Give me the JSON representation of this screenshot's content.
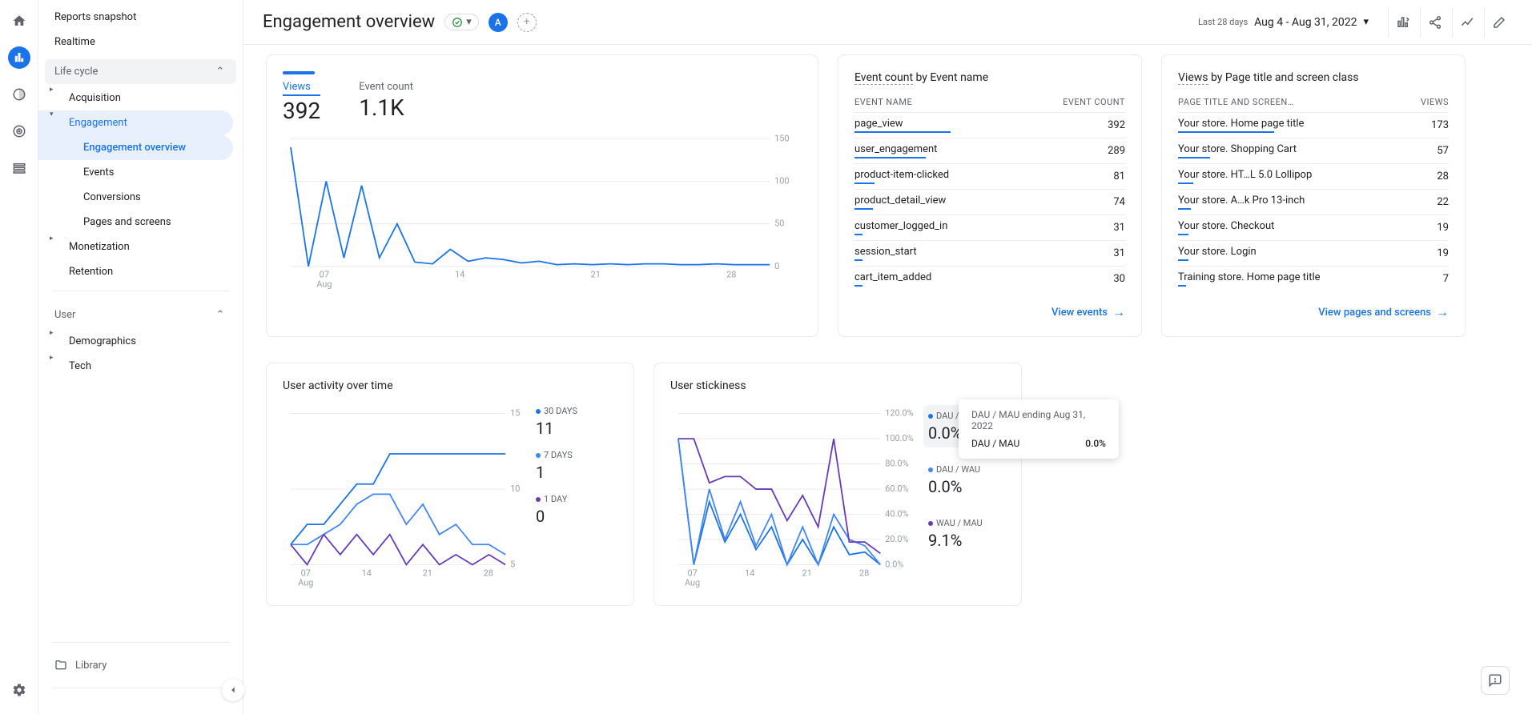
{
  "colors": {
    "primary": "#1a73e8",
    "purple": "#673ab7",
    "gray": "#9aa0a6",
    "grid": "#e8eaed",
    "text": "#202124",
    "text2": "#5f6368",
    "green": "#188038"
  },
  "rail": {
    "icons": [
      "home",
      "reports",
      "explore",
      "advertising",
      "library"
    ],
    "active_index": 1
  },
  "sidebar": {
    "reports_snapshot": "Reports snapshot",
    "realtime": "Realtime",
    "lifecycle": "Life cycle",
    "acquisition": "Acquisition",
    "engagement": "Engagement",
    "engagement_overview": "Engagement overview",
    "events": "Events",
    "conversions": "Conversions",
    "pages_and_screens": "Pages and screens",
    "monetization": "Monetization",
    "retention": "Retention",
    "user": "User",
    "demographics": "Demographics",
    "tech": "Tech",
    "library": "Library"
  },
  "header": {
    "title": "Engagement overview",
    "chip": "A",
    "period_label": "Last 28 days",
    "date_range": "Aug 4 - Aug 31, 2022"
  },
  "views_card": {
    "metric1_label": "Views",
    "metric1_value": "392",
    "metric2_label": "Event count",
    "metric2_value": "1.1K",
    "chart": {
      "type": "line",
      "color": "#1a73e8",
      "ylim": [
        0,
        150
      ],
      "yticks": [
        "0",
        "50",
        "100",
        "150"
      ],
      "xaxis_labels": [
        "07",
        "14",
        "21",
        "28"
      ],
      "xaxis_sub": "Aug",
      "data": [
        {
          "x": 0,
          "y": 140
        },
        {
          "x": 1,
          "y": 0
        },
        {
          "x": 2,
          "y": 100
        },
        {
          "x": 3,
          "y": 10
        },
        {
          "x": 4,
          "y": 95
        },
        {
          "x": 5,
          "y": 10
        },
        {
          "x": 6,
          "y": 50
        },
        {
          "x": 7,
          "y": 5
        },
        {
          "x": 8,
          "y": 3
        },
        {
          "x": 9,
          "y": 20
        },
        {
          "x": 10,
          "y": 6
        },
        {
          "x": 11,
          "y": 10
        },
        {
          "x": 12,
          "y": 8
        },
        {
          "x": 13,
          "y": 4
        },
        {
          "x": 14,
          "y": 6
        },
        {
          "x": 15,
          "y": 2
        },
        {
          "x": 16,
          "y": 3
        },
        {
          "x": 17,
          "y": 2
        },
        {
          "x": 18,
          "y": 3
        },
        {
          "x": 19,
          "y": 2
        },
        {
          "x": 20,
          "y": 3
        },
        {
          "x": 21,
          "y": 3
        },
        {
          "x": 22,
          "y": 2
        },
        {
          "x": 23,
          "y": 2
        },
        {
          "x": 24,
          "y": 3
        },
        {
          "x": 25,
          "y": 2
        },
        {
          "x": 26,
          "y": 2
        },
        {
          "x": 27,
          "y": 2
        }
      ]
    }
  },
  "event_table": {
    "title_a": "Event count",
    "title_b": " by Event name",
    "col1": "EVENT NAME",
    "col2": "EVENT COUNT",
    "rows": [
      {
        "name": "page_view",
        "val": "392",
        "bar": 1.0
      },
      {
        "name": "user_engagement",
        "val": "289",
        "bar": 0.74
      },
      {
        "name": "product-item-clicked",
        "val": "81",
        "bar": 0.21
      },
      {
        "name": "product_detail_view",
        "val": "74",
        "bar": 0.19
      },
      {
        "name": "customer_logged_in",
        "val": "31",
        "bar": 0.08
      },
      {
        "name": "session_start",
        "val": "31",
        "bar": 0.08
      },
      {
        "name": "cart_item_added",
        "val": "30",
        "bar": 0.08
      }
    ],
    "link": "View events"
  },
  "page_table": {
    "title_a": "Views",
    "title_b": " by Page title and screen class",
    "col1": "PAGE TITLE AND SCREEN…",
    "col2": "VIEWS",
    "rows": [
      {
        "name": "Your store. Home page title",
        "val": "173",
        "bar": 1.0
      },
      {
        "name": "Your store. Shopping Cart",
        "val": "57",
        "bar": 0.33
      },
      {
        "name": "Your store. HT…L 5.0 Lollipop",
        "val": "28",
        "bar": 0.16
      },
      {
        "name": "Your store. A…k Pro 13-inch",
        "val": "22",
        "bar": 0.13
      },
      {
        "name": "Your store. Checkout",
        "val": "19",
        "bar": 0.11
      },
      {
        "name": "Your store. Login",
        "val": "19",
        "bar": 0.11
      },
      {
        "name": "Training store. Home page title",
        "val": "7",
        "bar": 0.04
      }
    ],
    "link": "View pages and screens"
  },
  "activity_card": {
    "title": "User activity over time",
    "chart": {
      "ylim": [
        0,
        15
      ],
      "yticks": [
        "5",
        "10",
        "15"
      ],
      "xaxis_labels": [
        "07",
        "14",
        "21",
        "28"
      ],
      "xaxis_sub": "Aug",
      "series": [
        {
          "name": "30 DAYS",
          "color": "#1a73e8",
          "value": "11",
          "data": [
            {
              "x": 0,
              "y": 2
            },
            {
              "x": 1,
              "y": 4
            },
            {
              "x": 2,
              "y": 4
            },
            {
              "x": 3,
              "y": 6
            },
            {
              "x": 4,
              "y": 8
            },
            {
              "x": 5,
              "y": 8
            },
            {
              "x": 6,
              "y": 11
            },
            {
              "x": 7,
              "y": 11
            },
            {
              "x": 8,
              "y": 11
            },
            {
              "x": 9,
              "y": 11
            },
            {
              "x": 10,
              "y": 11
            },
            {
              "x": 11,
              "y": 11
            },
            {
              "x": 12,
              "y": 11
            },
            {
              "x": 13,
              "y": 11
            }
          ]
        },
        {
          "name": "7 DAYS",
          "color": "#4285f4",
          "value": "1",
          "data": [
            {
              "x": 0,
              "y": 2
            },
            {
              "x": 1,
              "y": 2
            },
            {
              "x": 2,
              "y": 3
            },
            {
              "x": 3,
              "y": 4
            },
            {
              "x": 4,
              "y": 6
            },
            {
              "x": 5,
              "y": 7
            },
            {
              "x": 6,
              "y": 7
            },
            {
              "x": 7,
              "y": 4
            },
            {
              "x": 8,
              "y": 6
            },
            {
              "x": 9,
              "y": 3
            },
            {
              "x": 10,
              "y": 4
            },
            {
              "x": 11,
              "y": 2
            },
            {
              "x": 12,
              "y": 2
            },
            {
              "x": 13,
              "y": 1
            }
          ]
        },
        {
          "name": "1 DAY",
          "color": "#673ab7",
          "value": "0",
          "data": [
            {
              "x": 0,
              "y": 2
            },
            {
              "x": 1,
              "y": 0
            },
            {
              "x": 2,
              "y": 3
            },
            {
              "x": 3,
              "y": 1
            },
            {
              "x": 4,
              "y": 3
            },
            {
              "x": 5,
              "y": 1
            },
            {
              "x": 6,
              "y": 3
            },
            {
              "x": 7,
              "y": 0
            },
            {
              "x": 8,
              "y": 2
            },
            {
              "x": 9,
              "y": 0
            },
            {
              "x": 10,
              "y": 1
            },
            {
              "x": 11,
              "y": 0
            },
            {
              "x": 12,
              "y": 1
            },
            {
              "x": 13,
              "y": 0
            }
          ]
        }
      ]
    }
  },
  "stickiness_card": {
    "title": "User stickiness",
    "chart": {
      "ylim": [
        0,
        120
      ],
      "yticks": [
        "0.0%",
        "20.0%",
        "40.0%",
        "60.0%",
        "80.0%",
        "100.0%",
        "120.0%"
      ],
      "xaxis_labels": [
        "07",
        "14",
        "21",
        "28"
      ],
      "xaxis_sub": "Aug",
      "series": [
        {
          "name": "DAU / MAU",
          "color": "#1a73e8",
          "value": "0.0%",
          "hl": true,
          "data": [
            {
              "x": 0,
              "y": 100
            },
            {
              "x": 1,
              "y": 0
            },
            {
              "x": 2,
              "y": 50
            },
            {
              "x": 3,
              "y": 18
            },
            {
              "x": 4,
              "y": 40
            },
            {
              "x": 5,
              "y": 12
            },
            {
              "x": 6,
              "y": 30
            },
            {
              "x": 7,
              "y": 0
            },
            {
              "x": 8,
              "y": 20
            },
            {
              "x": 9,
              "y": 0
            },
            {
              "x": 10,
              "y": 30
            },
            {
              "x": 11,
              "y": 8
            },
            {
              "x": 12,
              "y": 10
            },
            {
              "x": 13,
              "y": 0
            }
          ]
        },
        {
          "name": "DAU / WAU",
          "color": "#4285f4",
          "value": "0.0%",
          "data": [
            {
              "x": 0,
              "y": 100
            },
            {
              "x": 1,
              "y": 0
            },
            {
              "x": 2,
              "y": 60
            },
            {
              "x": 3,
              "y": 20
            },
            {
              "x": 4,
              "y": 50
            },
            {
              "x": 5,
              "y": 15
            },
            {
              "x": 6,
              "y": 40
            },
            {
              "x": 7,
              "y": 0
            },
            {
              "x": 8,
              "y": 30
            },
            {
              "x": 9,
              "y": 0
            },
            {
              "x": 10,
              "y": 40
            },
            {
              "x": 11,
              "y": 20
            },
            {
              "x": 12,
              "y": 15
            },
            {
              "x": 13,
              "y": 0
            }
          ]
        },
        {
          "name": "WAU / MAU",
          "color": "#673ab7",
          "value": "9.1%",
          "data": [
            {
              "x": 0,
              "y": 100
            },
            {
              "x": 1,
              "y": 100
            },
            {
              "x": 2,
              "y": 65
            },
            {
              "x": 3,
              "y": 70
            },
            {
              "x": 4,
              "y": 70
            },
            {
              "x": 5,
              "y": 60
            },
            {
              "x": 6,
              "y": 60
            },
            {
              "x": 7,
              "y": 35
            },
            {
              "x": 8,
              "y": 55
            },
            {
              "x": 9,
              "y": 30
            },
            {
              "x": 10,
              "y": 100
            },
            {
              "x": 11,
              "y": 18
            },
            {
              "x": 12,
              "y": 18
            },
            {
              "x": 13,
              "y": 9
            }
          ]
        }
      ]
    },
    "tooltip": {
      "title": "DAU / MAU ending Aug 31, 2022",
      "label": "DAU / MAU",
      "value": "0.0%"
    }
  }
}
